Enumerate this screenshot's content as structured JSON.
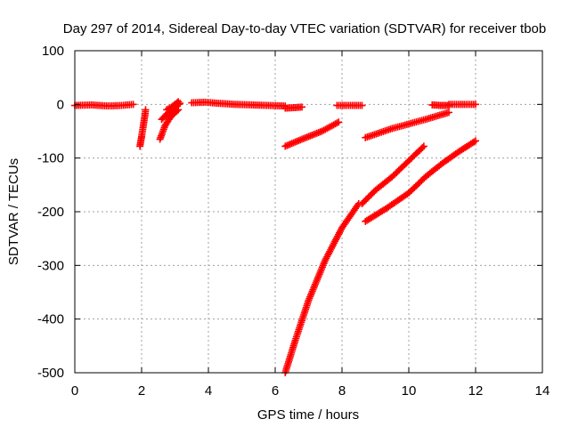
{
  "chart_data": {
    "type": "scatter",
    "title": "Day 297 of 2014, Sidereal Day-to-day VTEC variation (SDTVAR) for receiver tbob",
    "xlabel": "GPS time / hours",
    "ylabel": "SDTVAR / TECUs",
    "xlim": [
      0,
      14
    ],
    "ylim": [
      -500,
      100
    ],
    "xticks": [
      "0",
      "2",
      "4",
      "6",
      "8",
      "10",
      "12",
      "14"
    ],
    "yticks": [
      "100",
      "0",
      "-100",
      "-200",
      "-300",
      "-400",
      "-500"
    ],
    "grid": true,
    "marker": "+",
    "color": "#ff0000",
    "segments": [
      {
        "x": [
          0.0,
          0.5,
          1.0,
          1.4,
          1.75
        ],
        "y": [
          -2,
          -1,
          -3,
          -2,
          0
        ]
      },
      {
        "x": [
          1.95,
          2.0,
          2.05,
          2.1,
          2.12
        ],
        "y": [
          -78,
          -60,
          -40,
          -20,
          -10
        ]
      },
      {
        "x": [
          2.55,
          2.7,
          2.85,
          3.0,
          3.1
        ],
        "y": [
          -65,
          -40,
          -25,
          -15,
          -10
        ]
      },
      {
        "x": [
          2.6,
          2.8,
          3.0,
          3.15
        ],
        "y": [
          -28,
          -15,
          -5,
          2
        ]
      },
      {
        "x": [
          2.75,
          2.9,
          3.1
        ],
        "y": [
          -10,
          -5,
          5
        ]
      },
      {
        "x": [
          3.5,
          3.9,
          4.3,
          4.8,
          5.3,
          5.8,
          6.3
        ],
        "y": [
          3,
          4,
          2,
          0,
          -1,
          -2,
          -3
        ]
      },
      {
        "x": [
          6.3,
          6.6,
          6.8
        ],
        "y": [
          -7,
          -6,
          -5
        ]
      },
      {
        "x": [
          6.3,
          6.8,
          7.4,
          7.9
        ],
        "y": [
          -78,
          -65,
          -50,
          -33
        ]
      },
      {
        "x": [
          6.3,
          6.6,
          7.0,
          7.5,
          8.0,
          8.5
        ],
        "y": [
          -500,
          -440,
          -365,
          -290,
          -230,
          -185
        ]
      },
      {
        "x": [
          7.85,
          8.2,
          8.6
        ],
        "y": [
          -2,
          -2,
          -2
        ]
      },
      {
        "x": [
          8.7,
          9.5,
          10.5,
          11.2
        ],
        "y": [
          -62,
          -45,
          -28,
          -15
        ]
      },
      {
        "x": [
          8.6,
          9.0,
          9.5,
          10.0,
          10.45
        ],
        "y": [
          -185,
          -160,
          -135,
          -105,
          -78
        ]
      },
      {
        "x": [
          8.7,
          9.3,
          10.0,
          10.5,
          11.0,
          11.5,
          12.0
        ],
        "y": [
          -218,
          -195,
          -165,
          -135,
          -110,
          -88,
          -68
        ]
      },
      {
        "x": [
          10.7,
          11.0,
          11.2
        ],
        "y": [
          -1,
          -2,
          -2
        ]
      },
      {
        "x": [
          11.2,
          11.6,
          12.0
        ],
        "y": [
          0,
          0,
          0
        ]
      }
    ]
  }
}
